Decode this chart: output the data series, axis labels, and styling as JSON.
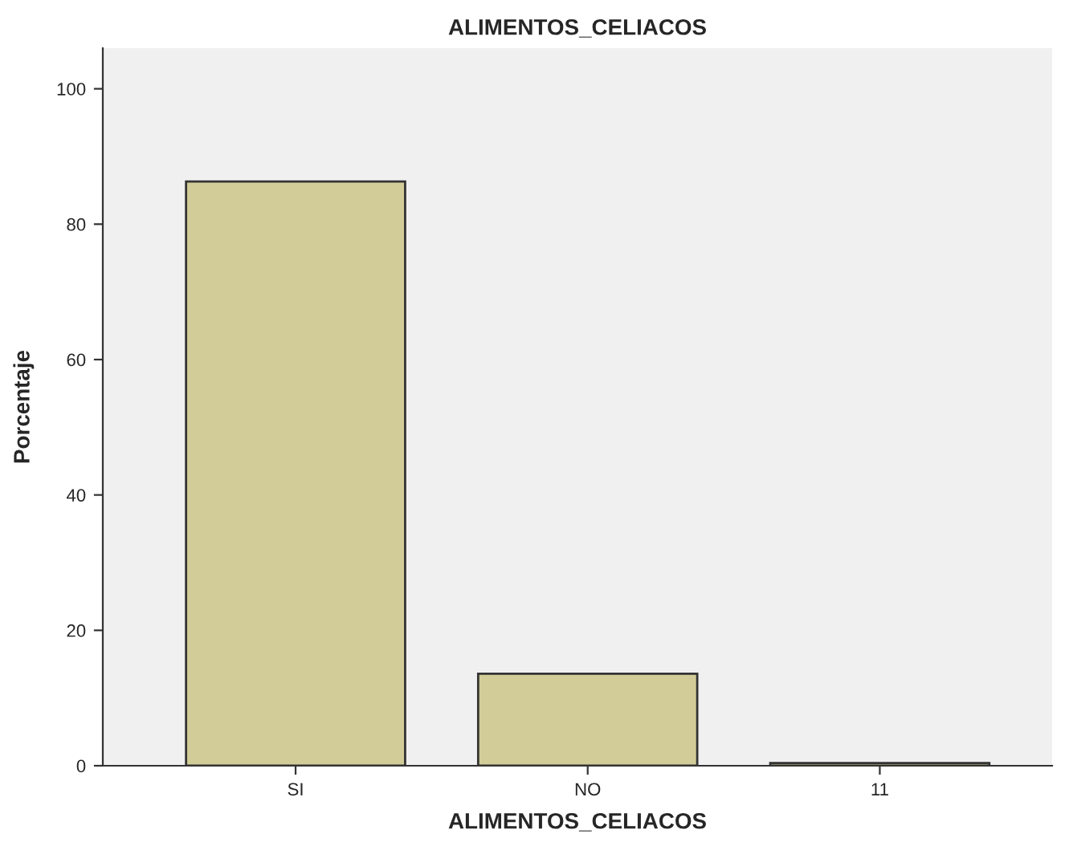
{
  "chart_data": {
    "type": "bar",
    "title": "ALIMENTOS_CELIACOS",
    "xlabel": "ALIMENTOS_CELIACOS",
    "ylabel": "Porcentaje",
    "categories": [
      "SI",
      "NO",
      "11"
    ],
    "values": [
      86.3,
      13.6,
      0.4
    ],
    "color": "#d2cd98",
    "ylim": [
      0,
      106
    ],
    "yticks": [
      0,
      20,
      40,
      60,
      80,
      100
    ],
    "grid": false,
    "legend": false
  }
}
